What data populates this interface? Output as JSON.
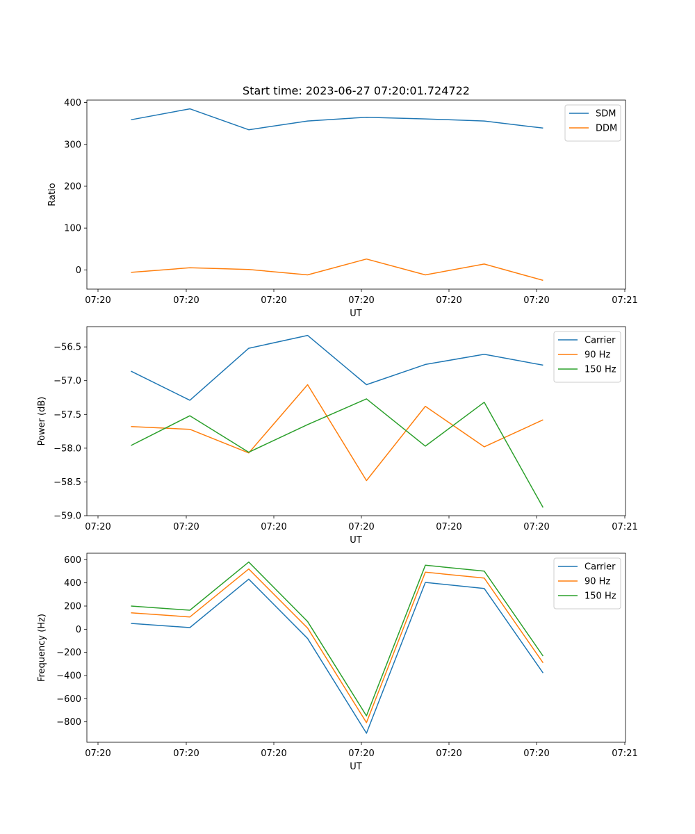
{
  "figure": {
    "title": "Start time: 2023-06-27 07:20:01.724722"
  },
  "colors": {
    "blue": "#1f77b4",
    "orange": "#ff7f0e",
    "green": "#2ca02c"
  },
  "chart_data": [
    {
      "type": "line",
      "title": "Start time: 2023-06-27 07:20:01.724722",
      "xlabel": "UT",
      "ylabel": "Ratio",
      "x_tick_labels": [
        "07:20",
        "07:20",
        "07:20",
        "07:20",
        "07:20",
        "07:20",
        "07:21"
      ],
      "x": [
        1,
        2,
        3,
        4,
        5,
        6,
        7,
        8
      ],
      "xlim": [
        0.25,
        9.4
      ],
      "ylim": [
        -46,
        406
      ],
      "yticks": [
        0,
        100,
        200,
        300,
        400
      ],
      "y_tick_labels": [
        "0",
        "100",
        "200",
        "300",
        "400"
      ],
      "legend_position": "upper right",
      "series": [
        {
          "name": "SDM",
          "color": "#1f77b4",
          "values": [
            359,
            385,
            335,
            356,
            365,
            361,
            356,
            339
          ]
        },
        {
          "name": "DDM",
          "color": "#ff7f0e",
          "values": [
            -6,
            5,
            1,
            -12,
            26,
            -12,
            14,
            -25
          ]
        }
      ]
    },
    {
      "type": "line",
      "xlabel": "UT",
      "ylabel": "Power (dB)",
      "x_tick_labels": [
        "07:20",
        "07:20",
        "07:20",
        "07:20",
        "07:20",
        "07:20",
        "07:21"
      ],
      "x": [
        1,
        2,
        3,
        4,
        5,
        6,
        7,
        8
      ],
      "xlim": [
        0.25,
        9.4
      ],
      "ylim": [
        -59.0,
        -56.2
      ],
      "yticks": [
        -59.0,
        -58.5,
        -58.0,
        -57.5,
        -57.0,
        -56.5
      ],
      "y_tick_labels": [
        "−59.0",
        "−58.5",
        "−58.0",
        "−57.5",
        "−57.0",
        "−56.5"
      ],
      "legend_position": "upper right",
      "series": [
        {
          "name": "Carrier",
          "color": "#1f77b4",
          "values": [
            -56.86,
            -57.29,
            -56.52,
            -56.33,
            -57.06,
            -56.76,
            -56.61,
            -56.77
          ]
        },
        {
          "name": "90 Hz",
          "color": "#ff7f0e",
          "values": [
            -57.68,
            -57.72,
            -58.07,
            -57.06,
            -58.48,
            -57.38,
            -57.98,
            -57.58
          ]
        },
        {
          "name": "150 Hz",
          "color": "#2ca02c",
          "values": [
            -57.96,
            -57.52,
            -58.06,
            -57.65,
            -57.27,
            -57.97,
            -57.32,
            -58.88
          ]
        }
      ]
    },
    {
      "type": "line",
      "xlabel": "UT",
      "ylabel": "Frequency (Hz)",
      "x_tick_labels": [
        "07:20",
        "07:20",
        "07:20",
        "07:20",
        "07:20",
        "07:20",
        "07:21"
      ],
      "x": [
        1,
        2,
        3,
        4,
        5,
        6,
        7,
        8
      ],
      "xlim": [
        0.25,
        9.4
      ],
      "ylim": [
        -976,
        656
      ],
      "yticks": [
        -800,
        -600,
        -400,
        -200,
        0,
        200,
        400,
        600
      ],
      "y_tick_labels": [
        "−800",
        "−600",
        "−400",
        "−200",
        "0",
        "200",
        "400",
        "600"
      ],
      "legend_position": "upper right",
      "series": [
        {
          "name": "Carrier",
          "color": "#1f77b4",
          "values": [
            50,
            14,
            432,
            -80,
            -898,
            404,
            352,
            -378
          ]
        },
        {
          "name": "90 Hz",
          "color": "#ff7f0e",
          "values": [
            142,
            106,
            520,
            10,
            -806,
            492,
            442,
            -290
          ]
        },
        {
          "name": "150 Hz",
          "color": "#2ca02c",
          "values": [
            200,
            164,
            580,
            66,
            -748,
            552,
            502,
            -232
          ]
        }
      ]
    }
  ]
}
